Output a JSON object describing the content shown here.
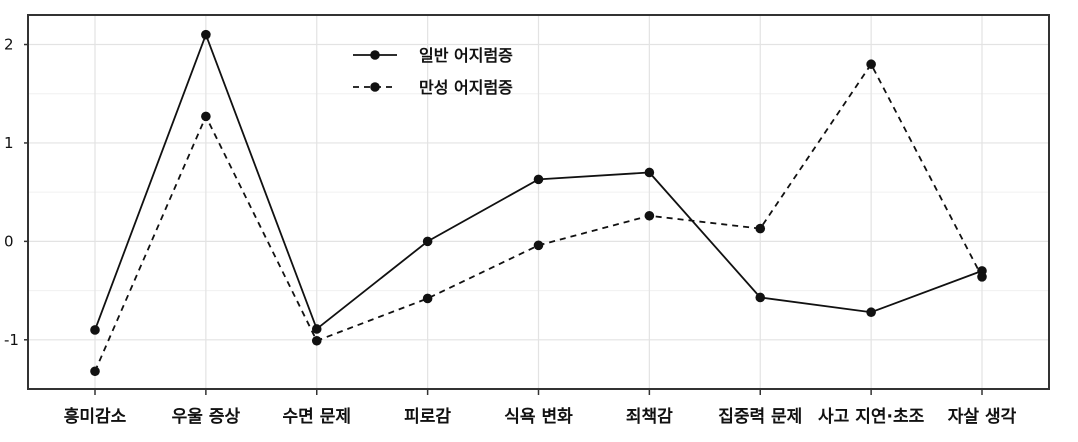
{
  "chart_data": {
    "type": "line",
    "title": "",
    "xlabel": "",
    "ylabel": "",
    "categories": [
      "흥미감소",
      "우울 증상",
      "수면 문제",
      "피로감",
      "식욕 변화",
      "죄책감",
      "집중력 문제",
      "사고 지연·초조",
      "자살 생각"
    ],
    "series": [
      {
        "name": "일반 어지럼증",
        "line_style": "solid",
        "color": "#111111",
        "values": [
          -0.9,
          2.1,
          -0.89,
          0.0,
          0.63,
          0.7,
          -0.57,
          -0.72,
          -0.3
        ]
      },
      {
        "name": "만성 어지럼증",
        "line_style": "dashed",
        "color": "#111111",
        "values": [
          -1.32,
          1.27,
          -1.01,
          -0.58,
          -0.04,
          0.26,
          0.13,
          1.8,
          -0.36
        ]
      }
    ],
    "ylim": [
      -1.5,
      2.3
    ],
    "yticks": [
      -1,
      0,
      1,
      2
    ],
    "ytick_labels": [
      "-1",
      "0",
      "1",
      "2"
    ],
    "grid": true,
    "legend_position": "top-center"
  }
}
